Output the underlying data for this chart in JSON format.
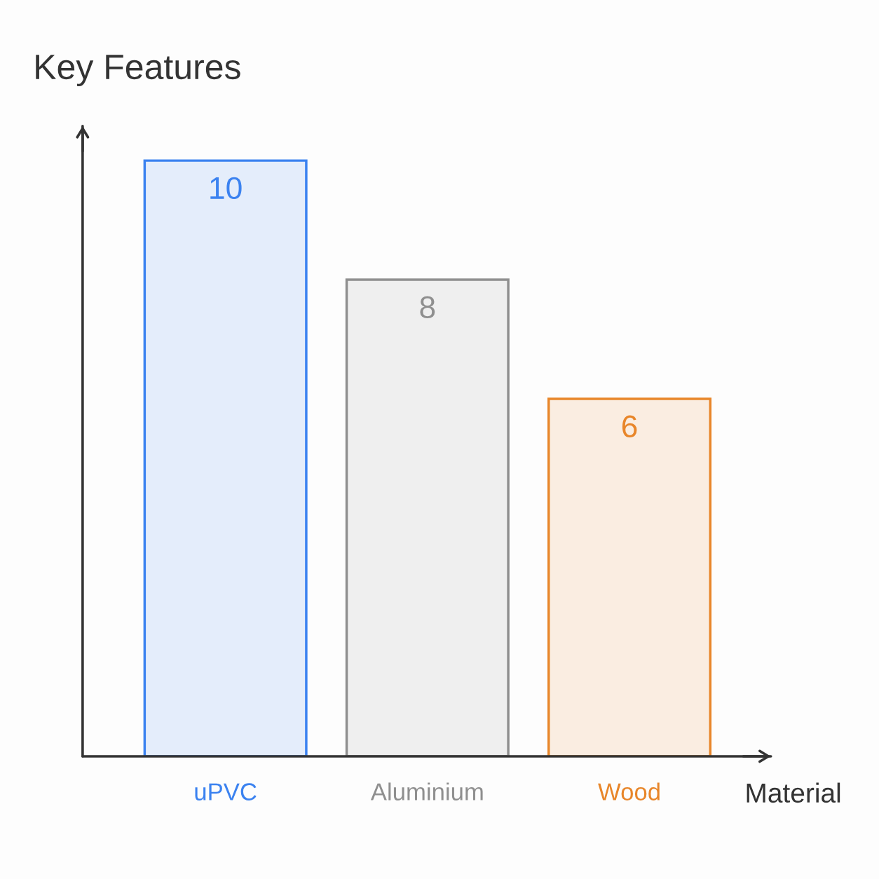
{
  "chart_data": {
    "type": "bar",
    "ylabel": "Key Features",
    "xlabel": "Material",
    "categories": [
      "uPVC",
      "Aluminium",
      "Wood"
    ],
    "values": [
      10,
      8,
      6
    ],
    "colors": [
      "#3b82f0",
      "#8f8f8f",
      "#e8862a"
    ],
    "data_labels": true,
    "tick_labels": "x",
    "grid": false,
    "legend": false
  }
}
